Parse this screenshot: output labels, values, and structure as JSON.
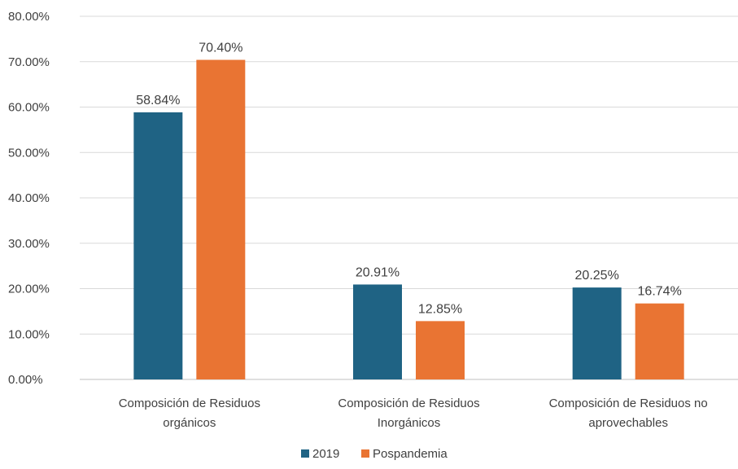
{
  "chart_data": {
    "type": "bar",
    "categories": [
      [
        "Composición de Residuos",
        "orgánicos"
      ],
      [
        "Composición de Residuos",
        "Inorgánicos"
      ],
      [
        "Composición de Residuos no",
        "aprovechables"
      ]
    ],
    "series": [
      {
        "name": "2019",
        "color": "#1f6384",
        "values": [
          58.84,
          20.91,
          20.25
        ],
        "labels": [
          "58.84%",
          "20.91%",
          "20.25%"
        ]
      },
      {
        "name": "Pospandemia",
        "color": "#e97433",
        "values": [
          70.4,
          12.85,
          16.74
        ],
        "labels": [
          "70.40%",
          "12.85%",
          "16.74%"
        ]
      }
    ],
    "y_ticks": [
      "0.00%",
      "10.00%",
      "20.00%",
      "30.00%",
      "40.00%",
      "50.00%",
      "60.00%",
      "70.00%",
      "80.00%"
    ],
    "ylim": [
      0,
      80
    ],
    "grid": true,
    "gridline_color": "#d9d9d9",
    "legend_position": "bottom"
  }
}
